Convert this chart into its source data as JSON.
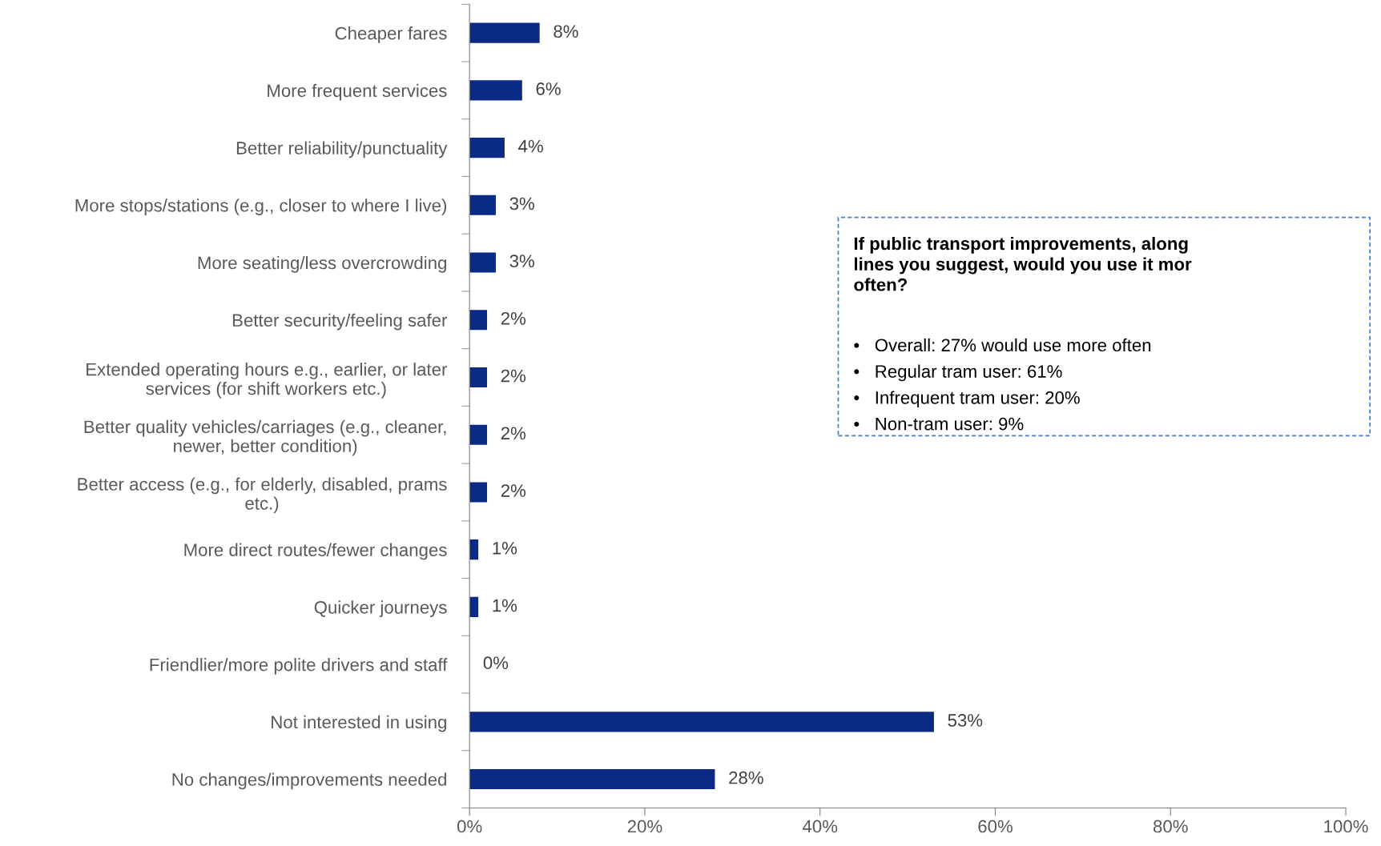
{
  "chart_data": {
    "type": "bar",
    "orientation": "horizontal",
    "categories": [
      "Cheaper fares",
      "More frequent services",
      "Better reliability/punctuality",
      "More stops/stations (e.g., closer to where I live)",
      "More seating/less overcrowding",
      "Better security/feeling safer",
      "Extended operating hours e.g., earlier, or later\nservices (for shift workers etc.)",
      "Better quality vehicles/carriages (e.g., cleaner,\nnewer, better condition)",
      "Better access (e.g., for elderly, disabled, prams\netc.)",
      "More direct routes/fewer changes",
      "Quicker journeys",
      "Friendlier/more polite drivers and staff",
      "Not interested in using",
      "No changes/improvements needed"
    ],
    "values": [
      8,
      6,
      4,
      3,
      3,
      2,
      2,
      2,
      2,
      1,
      1,
      0,
      53,
      28
    ],
    "value_labels": [
      "8%",
      "6%",
      "4%",
      "3%",
      "3%",
      "2%",
      "2%",
      "2%",
      "2%",
      "1%",
      "1%",
      "0%",
      "53%",
      "28%"
    ],
    "color": "#0a2a85",
    "xlim": [
      0,
      100
    ],
    "xticks": [
      {
        "value": 0,
        "label": "0%"
      },
      {
        "value": 20,
        "label": "20%"
      },
      {
        "value": 40,
        "label": "40%"
      },
      {
        "value": 60,
        "label": "60%"
      },
      {
        "value": 80,
        "label": "80%"
      },
      {
        "value": 100,
        "label": "100%"
      }
    ],
    "grid": false,
    "legend": false,
    "annotations": [
      "If public transport improvements, along\nlines you suggest, would you use it mor\noften?",
      "•   Overall: 27% would use more often\n•   Regular tram user: 61%\n•   Infrequent tram user: 20%\n•   Non-tram user: 9%"
    ]
  }
}
